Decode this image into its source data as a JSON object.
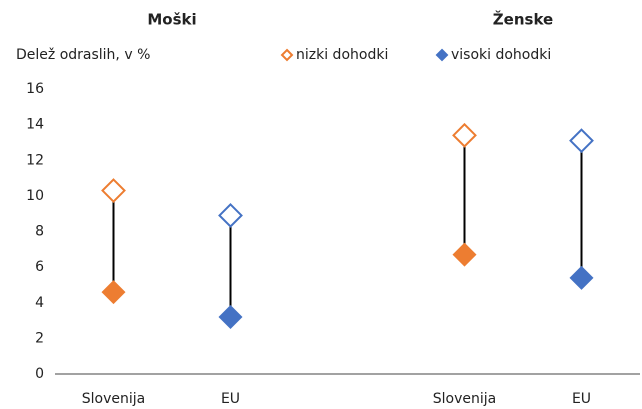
{
  "chart_data": {
    "type": "dumbbell",
    "y_label": "Delež odraslih, v %",
    "groups": [
      "Moški",
      "Ženske"
    ],
    "categories": [
      "Slovenija",
      "EU",
      "Slovenija",
      "EU"
    ],
    "category_group": [
      0,
      0,
      1,
      1
    ],
    "point_colors": [
      "#ed7d31",
      "#4472c4",
      "#ed7d31",
      "#4472c4"
    ],
    "series": [
      {
        "name": "nizki dohodki",
        "color": "#ed7d31",
        "marker": "hollow",
        "values": [
          10.3,
          8.9,
          13.4,
          13.1
        ]
      },
      {
        "name": "visoki dohodki",
        "color": "#4472c4",
        "marker": "filled",
        "values": [
          4.6,
          3.2,
          6.7,
          5.4
        ]
      }
    ],
    "ylim": [
      0,
      16
    ],
    "yticks": [
      0,
      2,
      4,
      6,
      8,
      10,
      12,
      14,
      16
    ],
    "grid": false
  }
}
